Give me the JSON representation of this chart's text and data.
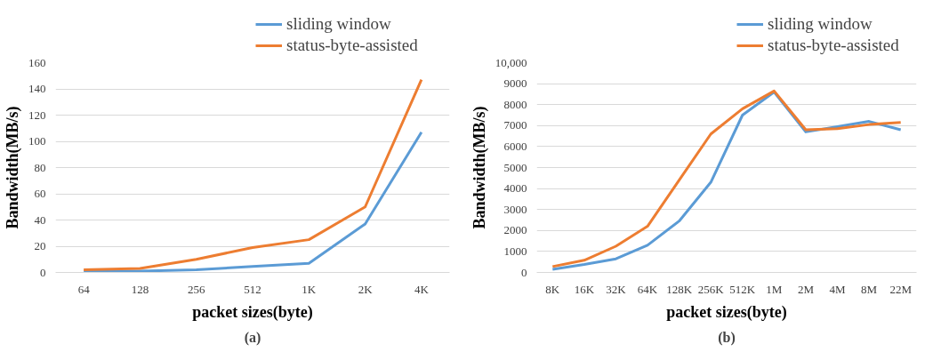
{
  "chart_data": [
    {
      "type": "line",
      "categories": [
        "64",
        "128",
        "256",
        "512",
        "1K",
        "2K",
        "4K"
      ],
      "xlabel": "packet sizes(byte)",
      "ylabel": "Bandwidth(MB/s)",
      "annotations": [
        "(a)"
      ],
      "ylim": [
        0,
        160
      ],
      "yticks": [
        0,
        20,
        40,
        60,
        80,
        100,
        120,
        140,
        160
      ],
      "grid": "y",
      "legend": "top right",
      "line_style": "solid",
      "marker": "none",
      "series": [
        {
          "name": "sliding window",
          "color": "#5b9bd5",
          "values": [
            1,
            1,
            2,
            4.5,
            7,
            37,
            107
          ]
        },
        {
          "name": "status-byte-assisted",
          "color": "#ed7d31",
          "values": [
            2,
            3,
            10,
            19,
            25,
            50,
            147
          ]
        }
      ]
    },
    {
      "type": "line",
      "categories": [
        "8K",
        "16K",
        "32K",
        "64K",
        "128K",
        "256K",
        "512K",
        "1M",
        "2M",
        "4M",
        "8M",
        "22M"
      ],
      "xlabel": "packet sizes(byte)",
      "ylabel": "Bandwidth(MB/s)",
      "annotations": [
        "(b)"
      ],
      "ylim": [
        0,
        10000
      ],
      "yticks": [
        0,
        1000,
        2000,
        3000,
        4000,
        5000,
        6000,
        7000,
        8000,
        9000,
        {
          "value": 10000,
          "label": "10,000"
        }
      ],
      "grid": "y",
      "legend": "top right",
      "line_style": "solid",
      "marker": "none",
      "series": [
        {
          "name": "sliding window",
          "color": "#5b9bd5",
          "values": [
            150,
            380,
            650,
            1300,
            2450,
            4300,
            7500,
            8600,
            6700,
            6950,
            7200,
            6800
          ]
        },
        {
          "name": "status-byte-assisted",
          "color": "#ed7d31",
          "values": [
            280,
            580,
            1250,
            2200,
            4400,
            6600,
            7800,
            8650,
            6800,
            6850,
            7050,
            7150
          ]
        }
      ]
    }
  ]
}
